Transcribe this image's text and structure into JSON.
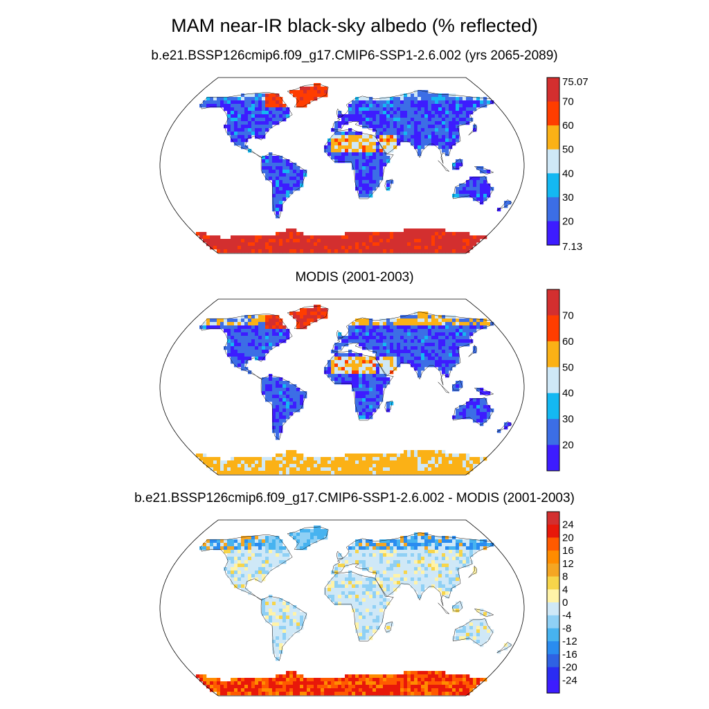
{
  "title": "MAM near-IR black-sky albedo (% reflected)",
  "panels": [
    {
      "subtitle": "b.e21.BSSP126cmip6.f09_g17.CMIP6-SSP1-2.6.002 (yrs 2065-2089)",
      "colorbar": {
        "ticks": [
          "75.07",
          "70",
          "60",
          "50",
          "40",
          "30",
          "20",
          "7.13"
        ],
        "colors": [
          "#d32f2f",
          "#ff3d00",
          "#fbb116",
          "#cfe8f7",
          "#14b8f2",
          "#3c6ee6",
          "#3d1cff"
        ]
      }
    },
    {
      "subtitle": "MODIS (2001-2003)",
      "colorbar": {
        "ticks": [
          "70",
          "60",
          "50",
          "40",
          "30",
          "20"
        ],
        "colors": [
          "#d32f2f",
          "#ff3d00",
          "#fbb116",
          "#cfe8f7",
          "#14b8f2",
          "#3c6ee6",
          "#3d1cff"
        ]
      }
    },
    {
      "subtitle": "b.e21.BSSP126cmip6.f09_g17.CMIP6-SSP1-2.6.002 - MODIS (2001-2003)",
      "colorbar": {
        "ticks": [
          "24",
          "20",
          "16",
          "12",
          "8",
          "4",
          "0",
          "-4",
          "-8",
          "-12",
          "-16",
          "-20",
          "-24"
        ],
        "colors": [
          "#d32f2f",
          "#e8180a",
          "#ff5a00",
          "#ff8c00",
          "#f5a623",
          "#f7d54a",
          "#fff3a8",
          "#cfe8f7",
          "#8fd0f5",
          "#47b3f0",
          "#2a8cf0",
          "#2f62e3",
          "#2a2cf2",
          "#3d1cff"
        ]
      }
    }
  ]
}
